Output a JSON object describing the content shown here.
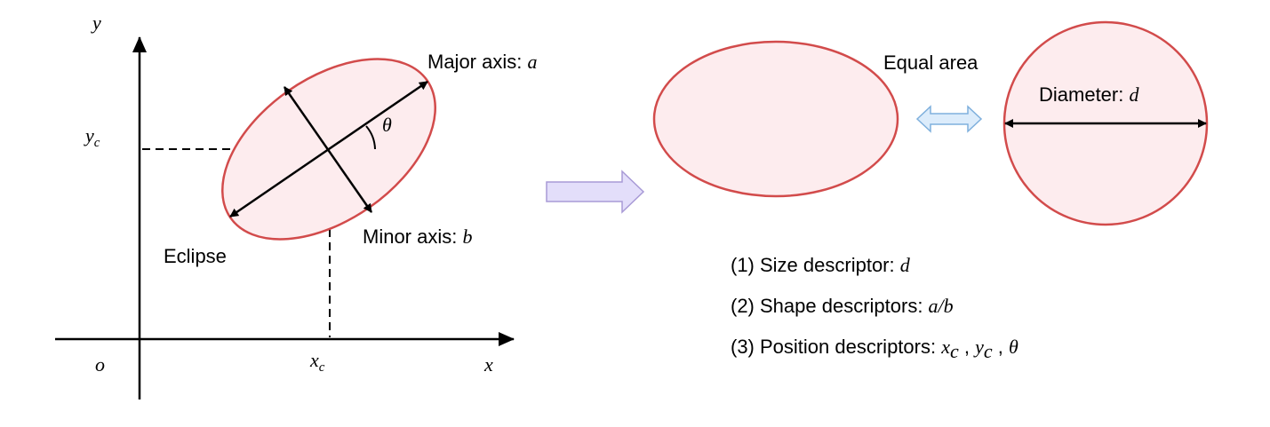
{
  "labels": {
    "y_axis": "y",
    "x_axis": "x",
    "origin": "o",
    "yc_base": "y",
    "yc_sub": "c",
    "xc_base": "x",
    "xc_sub": "c",
    "major_axis_text": "Major axis: ",
    "major_axis_var": "a",
    "minor_axis_text": "Minor axis: ",
    "minor_axis_var": "b",
    "theta": "θ",
    "eclipse": "Eclipse",
    "equal_area": "Equal area",
    "diameter_text": "Diameter: ",
    "diameter_var": "d"
  },
  "descriptors": {
    "size_text": "(1) Size descriptor: ",
    "size_var": "d",
    "shape_text": "(2) Shape descriptors: ",
    "shape_var": "a/b",
    "position_text": "(3) Position descriptors: ",
    "position_xc_base": "x",
    "position_xc_sub": "c",
    "position_sep1": " , ",
    "position_yc_base": "y",
    "position_yc_sub": "c",
    "position_sep2": " , ",
    "position_theta": "θ"
  },
  "colors": {
    "shape_stroke": "#d24b4b",
    "shape_fill": "#fdecee",
    "arrow_fill": "#e3defa",
    "arrow_stroke": "#a89ad6",
    "double_arrow_fill": "#dcecfb",
    "double_arrow_stroke": "#7fb0dd"
  }
}
